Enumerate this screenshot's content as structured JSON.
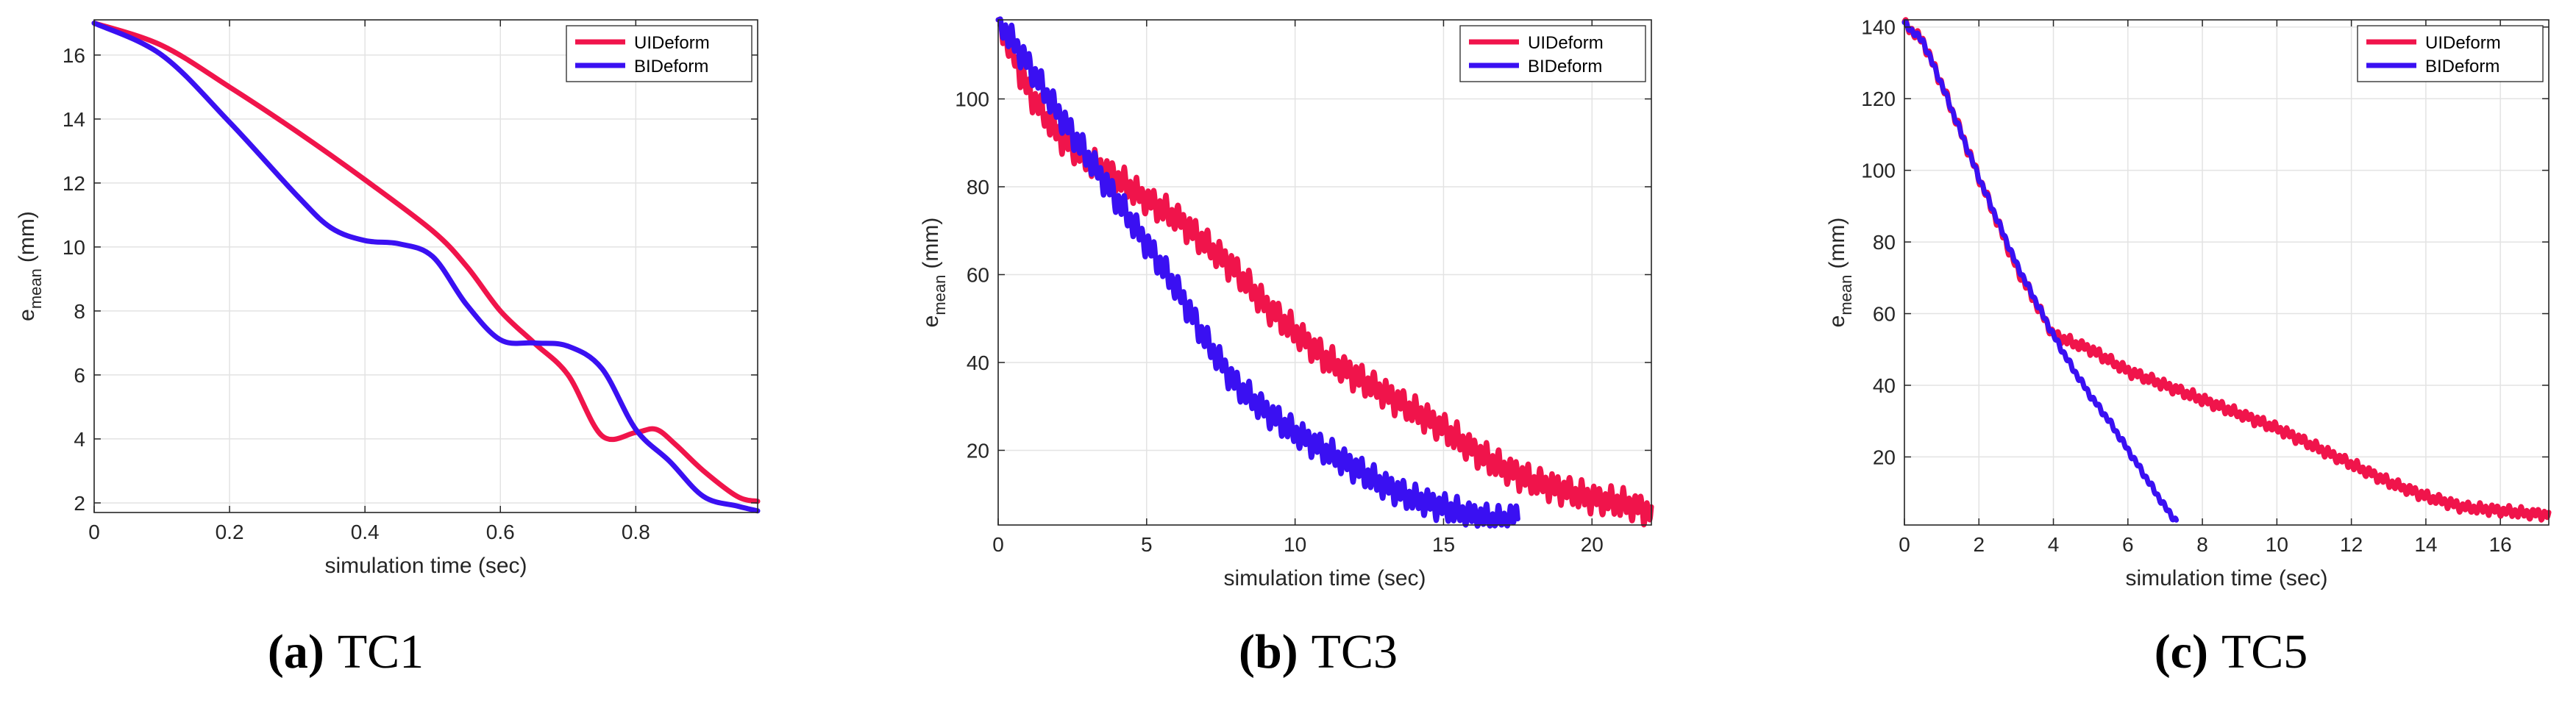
{
  "colors": {
    "red": "#f0144b",
    "blue": "#3a10f2",
    "grid": "#e3e3e3",
    "axis": "#262626"
  },
  "chart_data": [
    {
      "type": "line",
      "caption_tag": "(a)",
      "caption_name": "TC1",
      "xlabel": "simulation time (sec)",
      "ylabel_main": "e",
      "ylabel_sub": "mean",
      "ylabel_unit": "(mm)",
      "xlim": [
        0,
        0.98
      ],
      "ylim": [
        1.7,
        17.1
      ],
      "xticks": [
        0,
        0.2,
        0.4,
        0.6,
        0.8
      ],
      "xtick_labels": [
        "0",
        "0.2",
        "0.4",
        "0.6",
        "0.8"
      ],
      "yticks": [
        2,
        4,
        6,
        8,
        10,
        12,
        14,
        16
      ],
      "ytick_labels": [
        "2",
        "4",
        "6",
        "8",
        "10",
        "12",
        "14",
        "16"
      ],
      "legend": [
        "UIDeform",
        "BIDeform"
      ],
      "series": [
        {
          "name": "UIDeform",
          "color": "#f0144b",
          "x": [
            0,
            0.1,
            0.2,
            0.3,
            0.4,
            0.5,
            0.55,
            0.6,
            0.65,
            0.7,
            0.75,
            0.8,
            0.83,
            0.86,
            0.9,
            0.95,
            0.98
          ],
          "y": [
            17.0,
            16.3,
            15.0,
            13.6,
            12.1,
            10.5,
            9.4,
            8.0,
            7.0,
            6.0,
            4.1,
            4.2,
            4.3,
            3.8,
            3.0,
            2.2,
            2.05
          ]
        },
        {
          "name": "BIDeform",
          "color": "#3a10f2",
          "x": [
            0,
            0.1,
            0.2,
            0.3,
            0.35,
            0.4,
            0.45,
            0.5,
            0.55,
            0.6,
            0.65,
            0.7,
            0.75,
            0.8,
            0.85,
            0.9,
            0.95,
            0.98
          ],
          "y": [
            17.0,
            16.0,
            13.9,
            11.6,
            10.6,
            10.2,
            10.1,
            9.7,
            8.2,
            7.1,
            7.0,
            6.9,
            6.2,
            4.3,
            3.3,
            2.2,
            1.9,
            1.75
          ]
        }
      ]
    },
    {
      "type": "line",
      "caption_tag": "(b)",
      "caption_name": "TC3",
      "xlabel": "simulation time (sec)",
      "ylabel_main": "e",
      "ylabel_sub": "mean",
      "ylabel_unit": "(mm)",
      "xlim": [
        0,
        22
      ],
      "ylim": [
        3,
        118
      ],
      "xticks": [
        0,
        5,
        10,
        15,
        20
      ],
      "xtick_labels": [
        "0",
        "5",
        "10",
        "15",
        "20"
      ],
      "yticks": [
        20,
        40,
        60,
        80,
        100
      ],
      "ytick_labels": [
        "20",
        "40",
        "60",
        "80",
        "100"
      ],
      "legend": [
        "UIDeform",
        "BIDeform"
      ],
      "series": [
        {
          "name": "UIDeform",
          "color": "#f0144b",
          "wiggle": 2.6,
          "x": [
            0,
            1,
            2,
            3,
            4,
            5,
            6,
            7,
            8,
            9,
            10,
            11,
            12,
            13,
            14,
            15,
            16,
            17,
            18,
            19,
            20,
            21,
            22
          ],
          "y": [
            118,
            102,
            92,
            86,
            82,
            77,
            73,
            67,
            61,
            53,
            47,
            41,
            37,
            33,
            29,
            25,
            20,
            16,
            13,
            11,
            9,
            8,
            6
          ]
        },
        {
          "name": "BIDeform",
          "color": "#3a10f2",
          "wiggle": 2.4,
          "x": [
            0,
            1,
            2,
            3,
            4,
            5,
            6,
            7,
            8,
            9,
            10,
            11,
            12,
            13,
            14,
            15,
            16,
            17,
            17.5
          ],
          "y": [
            118,
            108,
            97,
            87,
            77,
            67,
            57,
            45,
            35,
            29,
            24,
            20,
            16,
            12,
            9,
            7,
            5,
            4,
            5
          ]
        }
      ]
    },
    {
      "type": "line",
      "caption_tag": "(c)",
      "caption_name": "TC5",
      "xlabel": "simulation time (sec)",
      "ylabel_main": "e",
      "ylabel_sub": "mean",
      "ylabel_unit": "(mm)",
      "xlim": [
        0,
        17.3
      ],
      "ylim": [
        1,
        142
      ],
      "xticks": [
        0,
        2,
        4,
        6,
        8,
        10,
        12,
        14,
        16
      ],
      "xtick_labels": [
        "0",
        "2",
        "4",
        "6",
        "8",
        "10",
        "12",
        "14",
        "16"
      ],
      "yticks": [
        20,
        40,
        60,
        80,
        100,
        120,
        140
      ],
      "ytick_labels": [
        "20",
        "40",
        "60",
        "80",
        "100",
        "120",
        "140"
      ],
      "legend": [
        "UIDeform",
        "BIDeform"
      ],
      "series": [
        {
          "name": "UIDeform",
          "color": "#f0144b",
          "wiggle": 1.2,
          "x": [
            0,
            0.5,
            1,
            2,
            3,
            4,
            5,
            6,
            7,
            8,
            9,
            10,
            11,
            12,
            13,
            14,
            15,
            16,
            17,
            17.3
          ],
          "y": [
            141,
            136,
            124,
            98,
            73,
            54,
            50,
            44,
            40,
            36,
            32,
            28,
            23,
            18,
            13,
            9,
            6,
            5,
            4,
            4
          ]
        },
        {
          "name": "BIDeform",
          "color": "#3a10f2",
          "wiggle": 0.6,
          "x": [
            0,
            0.5,
            1,
            2,
            3,
            4,
            4.5,
            5,
            5.5,
            6,
            6.5,
            7,
            7.3
          ],
          "y": [
            141,
            136,
            124,
            98,
            74,
            54,
            45,
            37,
            30,
            22,
            14,
            6,
            2
          ]
        }
      ]
    }
  ]
}
